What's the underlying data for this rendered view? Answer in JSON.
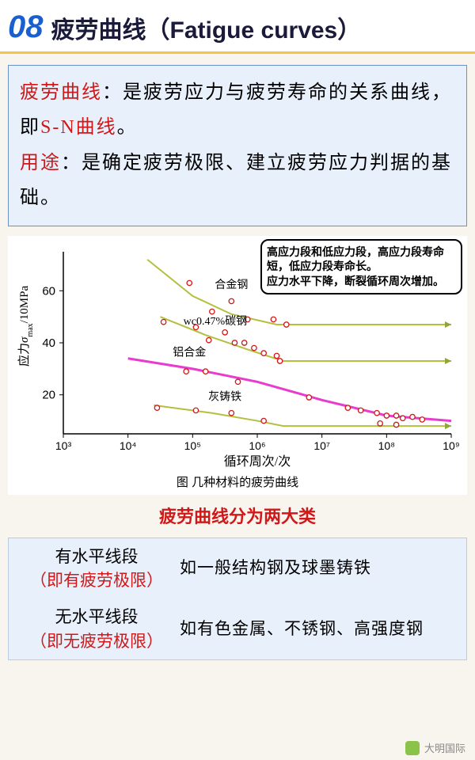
{
  "header": {
    "number": "08",
    "title": "疲劳曲线（Fatigue curves）"
  },
  "definition": {
    "term1": "疲劳曲线",
    "colon": "：",
    "body1a": "是疲劳应力与疲劳寿命的关系曲线，即",
    "sn": "S-N曲线",
    "body1b": "。",
    "term2": "用途",
    "body2": "：是确定疲劳极限、建立疲劳应力判据的基础。"
  },
  "chart": {
    "ylabel_cn": "应力",
    "ylabel_sym": "σ",
    "ylabel_sub": "max",
    "ylabel_unit": "/10MPa",
    "xlabel": "循环周次/次",
    "caption": "图  几种材料的疲劳曲线",
    "callout": "高应力段和低应力段，高应力段寿命短，低应力段寿命长。\n应力水平下降，断裂循环周次增加。",
    "yticks": [
      20,
      40,
      60
    ],
    "xticks": [
      "10³",
      "10⁴",
      "10⁵",
      "10⁶",
      "10⁷",
      "10⁸",
      "10⁹"
    ],
    "ylim": [
      5,
      75
    ],
    "xlim_log": [
      3,
      9
    ],
    "series": [
      {
        "label": "合金钢",
        "color": "#b5bf3e",
        "pts": [
          [
            4.3,
            72
          ],
          [
            5.0,
            58
          ],
          [
            5.6,
            51
          ],
          [
            6.3,
            47
          ],
          [
            6.5,
            47
          ],
          [
            9.0,
            47
          ]
        ]
      },
      {
        "label": "wc0.47%碳钢",
        "color": "#b5bf3e",
        "pts": [
          [
            4.5,
            50
          ],
          [
            5.2,
            43
          ],
          [
            5.9,
            37
          ],
          [
            6.4,
            33
          ],
          [
            6.5,
            33
          ],
          [
            9.0,
            33
          ]
        ]
      },
      {
        "label": "铝合金",
        "color": "#e93bcd",
        "pts": [
          [
            4.0,
            34
          ],
          [
            5.0,
            30
          ],
          [
            6.0,
            25
          ],
          [
            7.0,
            18
          ],
          [
            8.0,
            12
          ],
          [
            9.0,
            10
          ]
        ]
      },
      {
        "label": "灰铸铁",
        "color": "#b5bf3e",
        "pts": [
          [
            4.4,
            16
          ],
          [
            5.3,
            13
          ],
          [
            6.0,
            10
          ],
          [
            6.4,
            8
          ],
          [
            6.5,
            8
          ],
          [
            9.0,
            8
          ]
        ]
      }
    ],
    "markers": {
      "fill": "#ffffff",
      "stroke": "#d01818",
      "r": 3.2,
      "pts": [
        [
          4.95,
          63
        ],
        [
          5.3,
          52
        ],
        [
          5.6,
          56
        ],
        [
          5.85,
          49
        ],
        [
          6.25,
          49
        ],
        [
          6.45,
          47
        ],
        [
          4.55,
          48
        ],
        [
          5.05,
          46
        ],
        [
          5.25,
          41
        ],
        [
          5.5,
          44
        ],
        [
          5.65,
          40
        ],
        [
          5.8,
          40
        ],
        [
          5.95,
          38
        ],
        [
          6.1,
          36
        ],
        [
          6.3,
          35
        ],
        [
          6.35,
          33
        ],
        [
          4.9,
          29
        ],
        [
          5.2,
          29
        ],
        [
          5.7,
          25
        ],
        [
          6.8,
          19
        ],
        [
          7.4,
          15
        ],
        [
          7.6,
          14
        ],
        [
          7.85,
          13
        ],
        [
          8.0,
          12
        ],
        [
          8.15,
          12
        ],
        [
          8.25,
          11
        ],
        [
          8.4,
          11.5
        ],
        [
          8.55,
          10.5
        ],
        [
          4.45,
          15
        ],
        [
          5.05,
          14
        ],
        [
          5.6,
          13
        ],
        [
          6.1,
          10
        ],
        [
          7.9,
          9
        ],
        [
          8.15,
          8.5
        ]
      ]
    },
    "series_labels": [
      {
        "text": "合金钢",
        "x": 5.6,
        "y": 61
      },
      {
        "text": "wc0.47%碳钢",
        "x": 5.35,
        "y": 47
      },
      {
        "text": "铝合金",
        "x": 4.95,
        "y": 35
      },
      {
        "text": "灰铸铁",
        "x": 5.5,
        "y": 18
      }
    ],
    "axis_color": "#000000",
    "arrow_color": "#8fa536"
  },
  "subheading": "疲劳曲线分为两大类",
  "table": {
    "rows": [
      {
        "l1": "有水平线段",
        "l2": "（即有疲劳极限）",
        "r": "如一般结构钢及球墨铸铁"
      },
      {
        "l1": "无水平线段",
        "l2": "（即无疲劳极限）",
        "r": "如有色金属、不锈钢、高强度钢"
      }
    ]
  },
  "footer": "大明国际"
}
